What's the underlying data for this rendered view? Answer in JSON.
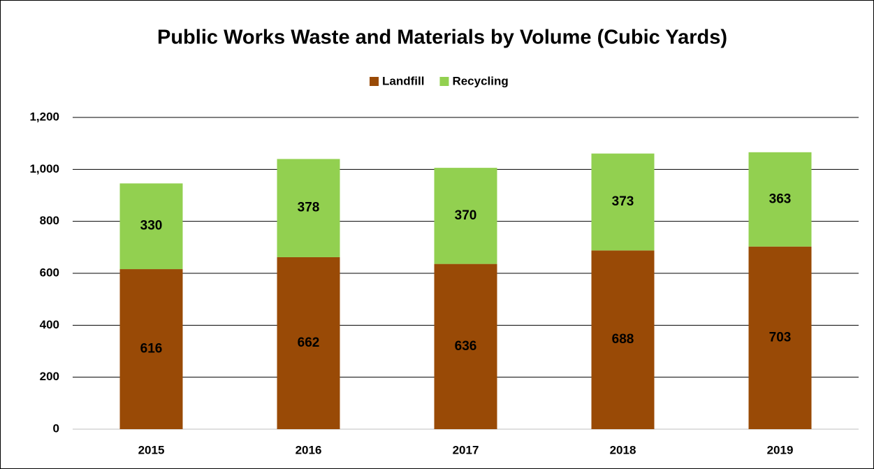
{
  "chart_data": {
    "type": "stacked_bar",
    "title": "Public Works Waste and Materials by Volume (Cubic Yards)",
    "categories": [
      "2015",
      "2016",
      "2017",
      "2018",
      "2019"
    ],
    "series": [
      {
        "name": "Landfill",
        "color": "#994a06",
        "values": [
          616,
          662,
          636,
          688,
          703
        ]
      },
      {
        "name": "Recycling",
        "color": "#92d050",
        "values": [
          330,
          378,
          370,
          373,
          363
        ]
      }
    ],
    "ylim": [
      0,
      1200
    ],
    "yticks": [
      0,
      200,
      400,
      600,
      800,
      {
        "value": 1000,
        "label": "1,000"
      },
      {
        "value": 1200,
        "label": "1,200"
      }
    ],
    "grid": true,
    "legend": "top"
  }
}
